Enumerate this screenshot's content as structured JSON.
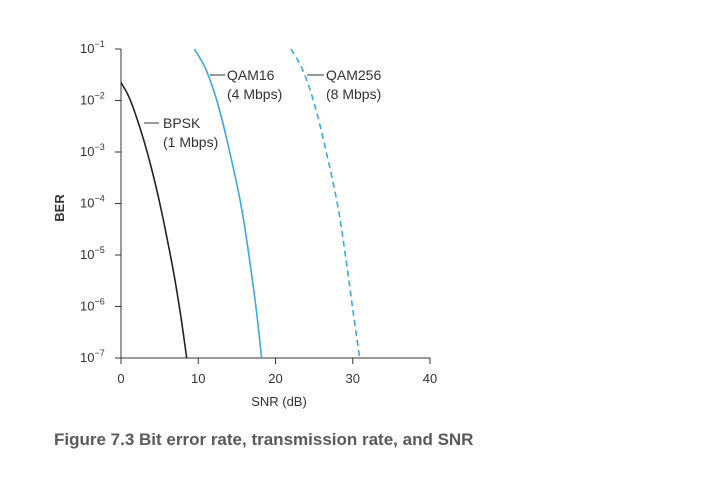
{
  "caption": "Figure 7.3 Bit error rate, transmission rate, and SNR",
  "chart_data": {
    "type": "line",
    "title": "",
    "xlabel": "SNR (dB)",
    "ylabel": "BER",
    "xlim": [
      0,
      40
    ],
    "ylim_log10": [
      -7,
      -1
    ],
    "y_scale": "log",
    "x_ticks": [
      0,
      10,
      20,
      30,
      40
    ],
    "y_tick_labels": [
      {
        "exp": -1,
        "base": "10",
        "sup": "−1"
      },
      {
        "exp": -2,
        "base": "10",
        "sup": "−2"
      },
      {
        "exp": -3,
        "base": "10",
        "sup": "−3"
      },
      {
        "exp": -4,
        "base": "10",
        "sup": "−4"
      },
      {
        "exp": -5,
        "base": "10",
        "sup": "−5"
      },
      {
        "exp": -6,
        "base": "10",
        "sup": "−6"
      },
      {
        "exp": -7,
        "base": "10",
        "sup": "−7"
      }
    ],
    "series": [
      {
        "name": "BPSK",
        "rate": "(1 Mbps)",
        "color": "#222222",
        "dash": "solid",
        "x": [
          0,
          1,
          2,
          3,
          4,
          5,
          6,
          7,
          7.8,
          8.5
        ],
        "log10_ber": [
          -1.65,
          -1.92,
          -2.32,
          -2.8,
          -3.35,
          -3.98,
          -4.7,
          -5.5,
          -6.25,
          -7.0
        ]
      },
      {
        "name": "QAM16",
        "rate": "(4 Mbps)",
        "color": "#3aaadf",
        "dash": "solid",
        "x": [
          9.5,
          11,
          12.5,
          14,
          15.5,
          16.5,
          17.5,
          18.2
        ],
        "log10_ber": [
          -1.0,
          -1.4,
          -2.05,
          -2.95,
          -4.0,
          -4.95,
          -6.05,
          -7.0
        ]
      },
      {
        "name": "QAM256",
        "rate": "(8 Mbps)",
        "color": "#3aaadf",
        "dash": "dashed",
        "x": [
          22,
          23.5,
          25,
          26.5,
          28,
          29,
          30,
          30.9
        ],
        "log10_ber": [
          -1.0,
          -1.4,
          -2.05,
          -2.95,
          -4.0,
          -4.95,
          -6.05,
          -7.0
        ]
      }
    ]
  }
}
